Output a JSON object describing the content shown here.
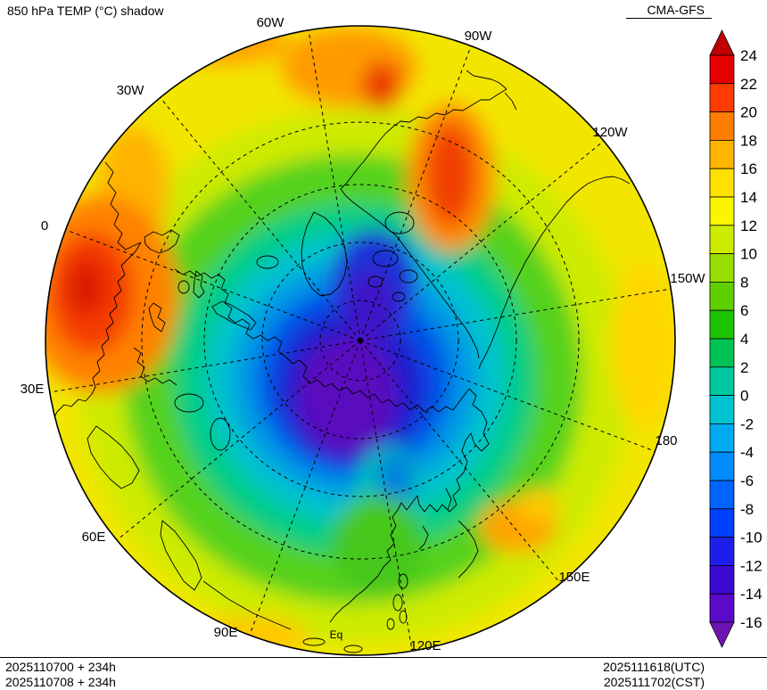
{
  "header": {
    "title": "850 hPa TEMP (°C) shadow",
    "model": "CMA-GFS"
  },
  "footer": {
    "init1": "2025110700 + 234h",
    "init2": "2025110708 + 234h",
    "valid_utc": "2025111618(UTC)",
    "valid_cst": "2025111702(CST)"
  },
  "map": {
    "longitude_labels": [
      "0",
      "30W",
      "60W",
      "90W",
      "120W",
      "150W",
      "180",
      "150E",
      "120E",
      "90E",
      "60E",
      "30E"
    ],
    "equator_label": "Eq"
  },
  "colorbar": {
    "labels": [
      "24",
      "22",
      "20",
      "18",
      "16",
      "14",
      "12",
      "10",
      "8",
      "6",
      "4",
      "2",
      "0",
      "-2",
      "-4",
      "-6",
      "-8",
      "-10",
      "-12",
      "-14",
      "-16"
    ],
    "cell_colors": [
      "#be0000",
      "#e60000",
      "#ff3c00",
      "#ff7d00",
      "#ffb400",
      "#ffe100",
      "#fbf500",
      "#cdec00",
      "#99dd00",
      "#5fcf00",
      "#1ec300",
      "#00c355",
      "#00c8a0",
      "#00c3d2",
      "#00aaf0",
      "#008cff",
      "#0064ff",
      "#0041ff",
      "#1e1eeb",
      "#3c0ad2",
      "#5a0ac8",
      "#6e14b4"
    ]
  },
  "chart_data": {
    "type": "heatmap",
    "title": "850 hPa TEMP (°C) shadow",
    "model": "CMA-GFS",
    "projection": "north polar stereographic, equator at rim, meridians every 30 degrees, dashed latitude circles",
    "units": "°C",
    "levels": [
      -16,
      -14,
      -12,
      -10,
      -8,
      -6,
      -4,
      -2,
      0,
      2,
      4,
      6,
      8,
      10,
      12,
      14,
      16,
      18,
      20,
      22,
      24
    ],
    "palette_low_to_high": [
      "#6e14b4",
      "#5a0ac8",
      "#3c0ad2",
      "#1e1eeb",
      "#0041ff",
      "#0064ff",
      "#008cff",
      "#00aaf0",
      "#00c3d2",
      "#00c8a0",
      "#00c355",
      "#1ec300",
      "#5fcf00",
      "#99dd00",
      "#cdec00",
      "#fbf500",
      "#ffe100",
      "#ffb400",
      "#ff7d00",
      "#ff3c00",
      "#e60000",
      "#be0000"
    ],
    "legend_position": "right",
    "meridian_labels": [
      "0",
      "30W",
      "60W",
      "90W",
      "120W",
      "150W",
      "180",
      "150E",
      "120E",
      "90E",
      "60E",
      "30E"
    ],
    "init_runs": [
      "2025110700 + 234h",
      "2025110708 + 234h"
    ],
    "valid_times": [
      "2025111618(UTC)",
      "2025111702(CST)"
    ],
    "field_summary": [
      {
        "region": "central Arctic / Siberia cold core",
        "approx_temp_c": -16
      },
      {
        "region": "ring around cold core (N Canada, Greenland, Okhotsk)",
        "approx_temp_c": -4
      },
      {
        "region": "midlatitude green band",
        "approx_temp_c": 8
      },
      {
        "region": "subtropical yellow rim",
        "approx_temp_c": 18
      },
      {
        "region": "North Africa / Sahara warm pool",
        "approx_temp_c": 24
      },
      {
        "region": "central North America warm area",
        "approx_temp_c": 22
      },
      {
        "region": "NW Pacific warm spot near Japan",
        "approx_temp_c": 20
      }
    ]
  }
}
